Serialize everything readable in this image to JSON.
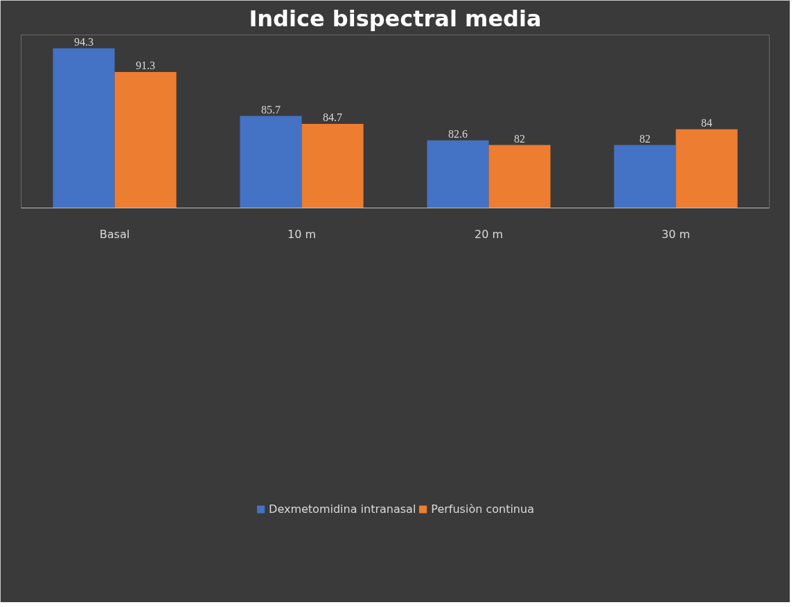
{
  "chart_data": {
    "type": "bar",
    "title": "Indice bispectral media",
    "categories": [
      "Basal",
      "10 m",
      "20 m",
      "30 m"
    ],
    "series": [
      {
        "name": "Dexmetomidina intranasal",
        "color": "#4472c4",
        "values": [
          94.3,
          85.7,
          82.6,
          82
        ]
      },
      {
        "name": "Perfusiòn continua",
        "color": "#ed7d31",
        "values": [
          91.3,
          84.7,
          82,
          84
        ]
      }
    ],
    "ylim": [
      74,
      96
    ],
    "data_labels": true,
    "grid": false,
    "legend": "bottom",
    "tick_labels": "x"
  }
}
